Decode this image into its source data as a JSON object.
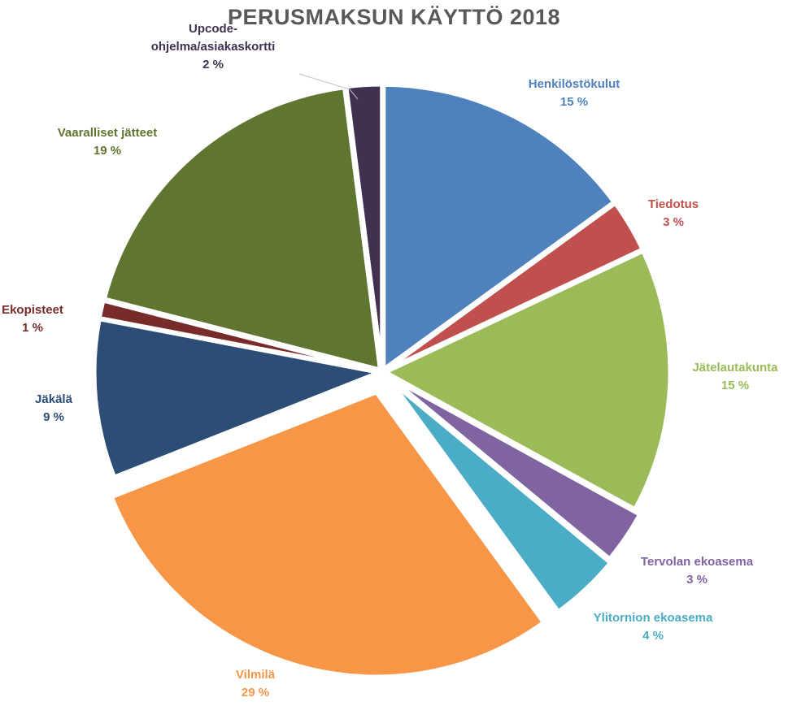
{
  "chart_data": {
    "type": "pie",
    "title": "PERUSMAKSUN KÄYTTÖ 2018",
    "slices": [
      {
        "label": "Henkilöstökulut",
        "value": 15,
        "value_label": "15 %",
        "color": "#4f81bd",
        "label_color": "#4f81bd"
      },
      {
        "label": "Tiedotus",
        "value": 3,
        "value_label": "3 %",
        "color": "#c0504d",
        "label_color": "#c0504d"
      },
      {
        "label": "Jätelautakunta",
        "value": 15,
        "value_label": "15 %",
        "color": "#9bbb59",
        "label_color": "#9bbb59"
      },
      {
        "label": "Tervolan ekoasema",
        "value": 3,
        "value_label": "3 %",
        "color": "#8064a2",
        "label_color": "#8064a2"
      },
      {
        "label": "Ylitornion ekoasema",
        "value": 4,
        "value_label": "4 %",
        "color": "#4bacc6",
        "label_color": "#4bacc6"
      },
      {
        "label": "Vilmilä",
        "value": 29,
        "value_label": "29 %",
        "color": "#f79646",
        "label_color": "#f79646"
      },
      {
        "label": "Jäkälä",
        "value": 9,
        "value_label": "9 %",
        "color": "#2c4d75",
        "label_color": "#2c4d75"
      },
      {
        "label": "Ekopisteet",
        "value": 1,
        "value_label": "1 %",
        "color": "#772c2a",
        "label_color": "#772c2a"
      },
      {
        "label": "Vaaralliset jätteet",
        "value": 19,
        "value_label": "19 %",
        "color": "#5f7530",
        "label_color": "#5f7530"
      },
      {
        "label": "Upcode-ohjelma/asiakaskortti",
        "value": 2,
        "value_label": "2 %",
        "color": "#403151",
        "label_color": "#403151"
      }
    ]
  }
}
